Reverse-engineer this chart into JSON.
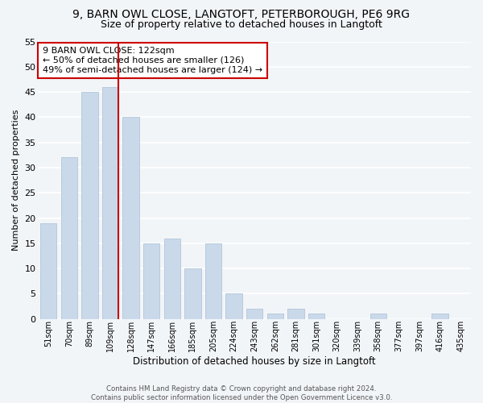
{
  "title1": "9, BARN OWL CLOSE, LANGTOFT, PETERBOROUGH, PE6 9RG",
  "title2": "Size of property relative to detached houses in Langtoft",
  "xlabel": "Distribution of detached houses by size in Langtoft",
  "ylabel": "Number of detached properties",
  "bar_labels": [
    "51sqm",
    "70sqm",
    "89sqm",
    "109sqm",
    "128sqm",
    "147sqm",
    "166sqm",
    "185sqm",
    "205sqm",
    "224sqm",
    "243sqm",
    "262sqm",
    "281sqm",
    "301sqm",
    "320sqm",
    "339sqm",
    "358sqm",
    "377sqm",
    "397sqm",
    "416sqm",
    "435sqm"
  ],
  "bar_values": [
    19,
    32,
    45,
    46,
    40,
    15,
    16,
    10,
    15,
    5,
    2,
    1,
    2,
    1,
    0,
    0,
    1,
    0,
    0,
    1,
    0
  ],
  "bar_color": "#c9d9ea",
  "bar_edgecolor": "#a8bfd4",
  "vline_color": "#cc0000",
  "annotation_text": "9 BARN OWL CLOSE: 122sqm\n← 50% of detached houses are smaller (126)\n49% of semi-detached houses are larger (124) →",
  "annotation_box_edgecolor": "#cc0000",
  "annotation_fontsize": 8,
  "ylim": [
    0,
    55
  ],
  "yticks": [
    0,
    5,
    10,
    15,
    20,
    25,
    30,
    35,
    40,
    45,
    50,
    55
  ],
  "footer_text": "Contains HM Land Registry data © Crown copyright and database right 2024.\nContains public sector information licensed under the Open Government Licence v3.0.",
  "bg_color": "#f2f5f8",
  "plot_bg_color": "#f2f5f8",
  "grid_color": "#ffffff",
  "title1_fontsize": 10,
  "title2_fontsize": 9
}
